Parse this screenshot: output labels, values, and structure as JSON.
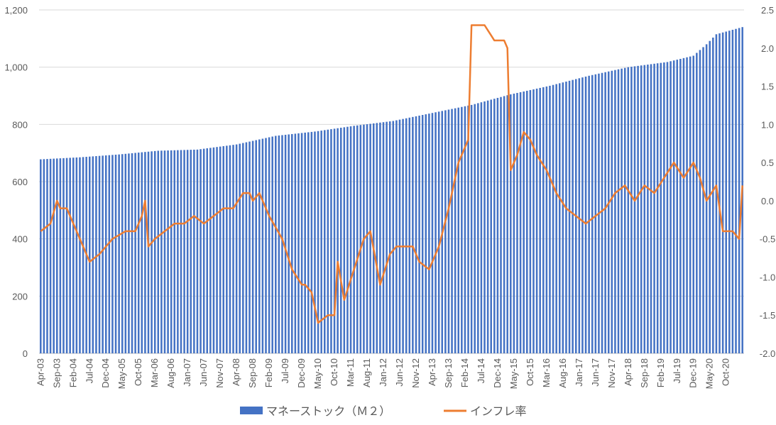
{
  "chart_data": {
    "type": "bar-line-combo",
    "title": "",
    "bar_color": "#4472C4",
    "line_color": "#ED7D31",
    "grid": true,
    "legend_position": "bottom",
    "left_axis": {
      "ylim": [
        0,
        1200
      ],
      "ticks": [
        "0",
        "200",
        "400",
        "600",
        "800",
        "1,000",
        "1,200"
      ]
    },
    "right_axis": {
      "ylim": [
        -2.0,
        2.5
      ],
      "ticks": [
        "-2.0",
        "-1.5",
        "-1.0",
        "-0.5",
        "0.0",
        "0.5",
        "1.0",
        "1.5",
        "2.0",
        "2.5"
      ]
    },
    "x_tick_labels": [
      "Apr-03",
      "Sep-03",
      "Feb-04",
      "Jul-04",
      "Dec-04",
      "May-05",
      "Oct-05",
      "Mar-06",
      "Aug-06",
      "Jan-07",
      "Jun-07",
      "Nov-07",
      "Apr-08",
      "Sep-08",
      "Feb-09",
      "Jul-09",
      "Dec-09",
      "May-10",
      "Oct-10",
      "Mar-11",
      "Aug-11",
      "Jan-12",
      "Jun-12",
      "Nov-12",
      "Apr-13",
      "Sep-13",
      "Feb-14",
      "Jul-14",
      "Dec-14",
      "May-15",
      "Oct-15",
      "Mar-16",
      "Aug-16",
      "Jan-17",
      "Jun-17",
      "Nov-17",
      "Apr-18",
      "Sep-18",
      "Feb-19",
      "Jul-19",
      "Dec-19",
      "May-20",
      "Oct-20"
    ],
    "x_range": [
      "2003-04",
      "2021-03"
    ],
    "series": [
      {
        "name": "マネーストック（Ｍ２）",
        "type": "bar",
        "axis": "left",
        "x": [
          "2003-04",
          "2004-04",
          "2005-04",
          "2006-04",
          "2007-04",
          "2008-04",
          "2009-04",
          "2010-04",
          "2011-04",
          "2012-04",
          "2013-04",
          "2014-04",
          "2015-04",
          "2016-04",
          "2017-04",
          "2018-04",
          "2019-04",
          "2019-12",
          "2020-04",
          "2020-07",
          "2021-03"
        ],
        "values": [
          678,
          685,
          695,
          708,
          712,
          730,
          760,
          775,
          795,
          812,
          840,
          868,
          905,
          935,
          970,
          1000,
          1018,
          1040,
          1080,
          1115,
          1140
        ]
      },
      {
        "name": "インフレ率",
        "type": "line",
        "axis": "right",
        "x": [
          "2003-04",
          "2003-07",
          "2003-09",
          "2003-10",
          "2003-12",
          "2004-03",
          "2004-05",
          "2004-07",
          "2004-10",
          "2004-12",
          "2005-02",
          "2005-06",
          "2005-09",
          "2005-11",
          "2005-12",
          "2006-01",
          "2006-03",
          "2006-06",
          "2006-09",
          "2006-12",
          "2007-03",
          "2007-06",
          "2007-09",
          "2007-12",
          "2008-03",
          "2008-06",
          "2008-08",
          "2008-09",
          "2008-11",
          "2009-02",
          "2009-06",
          "2009-09",
          "2009-12",
          "2010-01",
          "2010-03",
          "2010-05",
          "2010-08",
          "2010-10",
          "2010-11",
          "2011-01",
          "2011-04",
          "2011-07",
          "2011-09",
          "2011-12",
          "2012-03",
          "2012-05",
          "2012-07",
          "2012-10",
          "2012-12",
          "2013-03",
          "2013-06",
          "2013-09",
          "2013-12",
          "2014-02",
          "2014-03",
          "2014-04",
          "2014-06",
          "2014-08",
          "2014-11",
          "2015-02",
          "2015-03",
          "2015-04",
          "2015-06",
          "2015-08",
          "2015-10",
          "2015-12",
          "2016-03",
          "2016-06",
          "2016-09",
          "2016-12",
          "2017-03",
          "2017-06",
          "2017-09",
          "2017-12",
          "2018-03",
          "2018-06",
          "2018-09",
          "2018-12",
          "2019-03",
          "2019-06",
          "2019-09",
          "2019-12",
          "2020-02",
          "2020-04",
          "2020-07",
          "2020-09",
          "2020-12",
          "2021-02",
          "2021-03"
        ],
        "values": [
          -0.4,
          -0.3,
          0.0,
          -0.1,
          -0.1,
          -0.4,
          -0.6,
          -0.8,
          -0.7,
          -0.6,
          -0.5,
          -0.4,
          -0.4,
          -0.2,
          0.0,
          -0.6,
          -0.5,
          -0.4,
          -0.3,
          -0.3,
          -0.2,
          -0.3,
          -0.2,
          -0.1,
          -0.1,
          0.1,
          0.1,
          0.0,
          0.1,
          -0.2,
          -0.5,
          -0.9,
          -1.1,
          -1.1,
          -1.2,
          -1.6,
          -1.5,
          -1.5,
          -0.8,
          -1.3,
          -0.9,
          -0.5,
          -0.4,
          -1.1,
          -0.7,
          -0.6,
          -0.6,
          -0.6,
          -0.8,
          -0.9,
          -0.6,
          -0.1,
          0.5,
          0.7,
          0.8,
          2.3,
          2.3,
          2.3,
          2.1,
          2.1,
          2.0,
          0.4,
          0.6,
          0.9,
          0.8,
          0.6,
          0.4,
          0.1,
          -0.1,
          -0.2,
          -0.3,
          -0.2,
          -0.1,
          0.1,
          0.2,
          0.0,
          0.2,
          0.1,
          0.3,
          0.5,
          0.3,
          0.5,
          0.3,
          0.0,
          0.2,
          -0.4,
          -0.4,
          -0.5,
          0.2
        ]
      }
    ]
  }
}
